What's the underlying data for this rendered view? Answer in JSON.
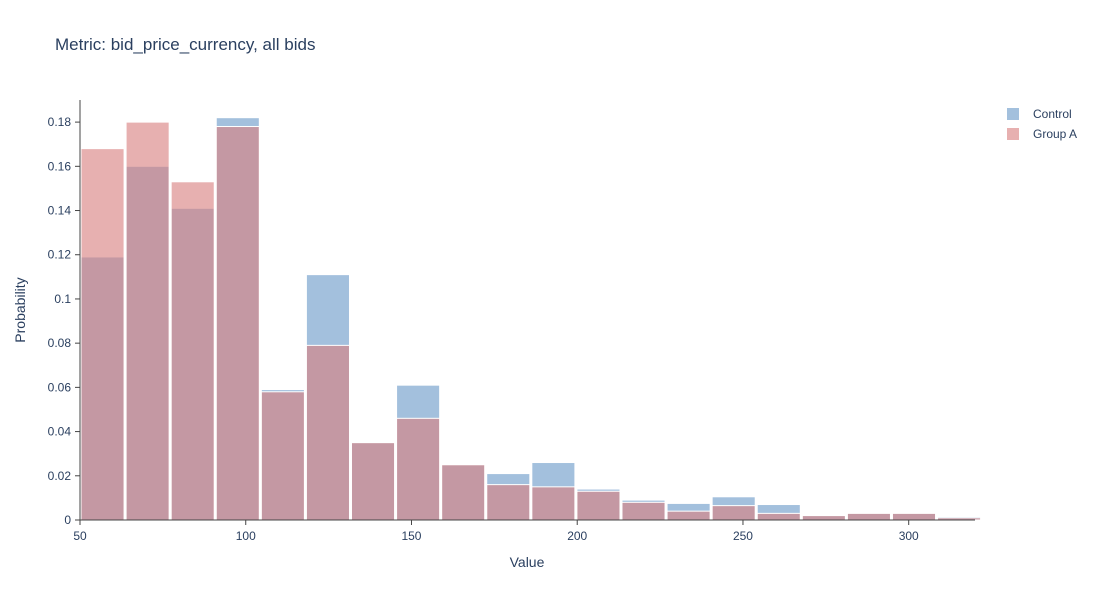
{
  "chart_data": {
    "type": "bar",
    "title": "Metric: bid_price_currency, all bids",
    "xlabel": "Value",
    "ylabel": "Probability",
    "xlim": [
      50,
      320
    ],
    "ylim": [
      0,
      0.19
    ],
    "x_ticks": [
      50,
      100,
      150,
      200,
      250,
      300
    ],
    "y_ticks": [
      0,
      0.02,
      0.04,
      0.06,
      0.08,
      0.1,
      0.12,
      0.14,
      0.16,
      0.18
    ],
    "y_tick_labels": [
      "0",
      "0.02",
      "0.04",
      "0.06",
      "0.08",
      "0.1",
      "0.12",
      "0.14",
      "0.16",
      "0.18"
    ],
    "bin_starts": [
      50,
      63.6,
      77.2,
      90.8,
      104.4,
      118,
      131.6,
      145.2,
      158.8,
      172.4,
      186,
      199.6,
      213.2,
      226.8,
      240.4,
      254,
      267.6,
      281.2,
      294.8,
      308.4
    ],
    "bin_width": 13.6,
    "legend_position": "top-right",
    "grid": false,
    "series": [
      {
        "name": "Control",
        "color": "#7fa8d0",
        "opacity": 0.72,
        "values": [
          0.119,
          0.16,
          0.141,
          0.182,
          0.059,
          0.111,
          0.035,
          0.061,
          0.025,
          0.021,
          0.026,
          0.014,
          0.009,
          0.0075,
          0.0105,
          0.007,
          0.002,
          0.003,
          0.003,
          0.0015
        ]
      },
      {
        "name": "Group A",
        "color": "#d98080",
        "opacity": 0.62,
        "values": [
          0.168,
          0.18,
          0.153,
          0.178,
          0.058,
          0.079,
          0.035,
          0.046,
          0.025,
          0.016,
          0.015,
          0.013,
          0.008,
          0.004,
          0.0065,
          0.003,
          0.002,
          0.003,
          0.003,
          0.001
        ]
      }
    ]
  }
}
